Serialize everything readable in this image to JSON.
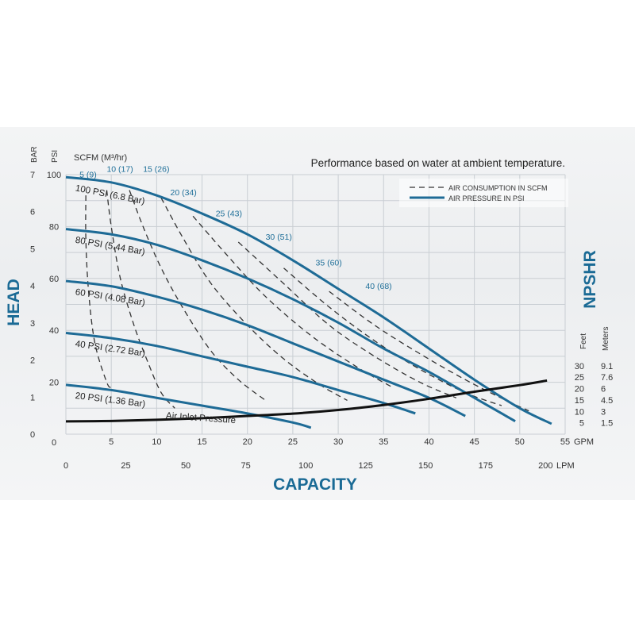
{
  "chart_data": {
    "type": "line",
    "note": "Performance based on water at ambient temperature.",
    "xlabel": "CAPACITY",
    "ylabel": "HEAD",
    "ylabel_right": "NPSHR",
    "gpm_ticks": [
      0,
      5,
      10,
      15,
      20,
      25,
      30,
      35,
      40,
      45,
      50,
      55
    ],
    "gpm_unit": "GPM",
    "lpm_ticks": [
      0,
      25,
      50,
      75,
      100,
      125,
      150,
      175,
      200
    ],
    "lpm_unit": "LPM",
    "bar_unit": "BAR",
    "bar_ticks": [
      0,
      1,
      2,
      3,
      4,
      5,
      6,
      7
    ],
    "psi_unit": "PSI",
    "psi_ticks": [
      20,
      40,
      60,
      80,
      100
    ],
    "scfm_unit": "SCFM (M³/hr)",
    "npshr_feet_unit": "Feet",
    "npshr_meters_unit": "Meters",
    "npshr_feet_ticks": [
      5,
      10,
      15,
      20,
      25,
      30
    ],
    "npshr_meters_ticks": [
      "1.5",
      "3",
      "4.5",
      "6",
      "7.6",
      "9.1"
    ],
    "legend": {
      "dashed": "AIR CONSUMPTION IN SCFM",
      "solid": "AIR PRESSURE IN PSI"
    },
    "xlim": [
      0,
      55
    ],
    "ylim": [
      0,
      100
    ],
    "pressure_curves": [
      {
        "name": "100 PSI (6.8 Bar)",
        "points": [
          [
            0,
            99
          ],
          [
            5,
            97
          ],
          [
            10,
            92
          ],
          [
            15,
            85
          ],
          [
            20,
            77
          ],
          [
            25,
            67
          ],
          [
            30,
            56
          ],
          [
            35,
            45
          ],
          [
            40,
            33
          ],
          [
            45,
            21
          ],
          [
            50,
            10
          ],
          [
            53.5,
            4
          ]
        ]
      },
      {
        "name": "80 PSI (5.44 Bar)",
        "points": [
          [
            0,
            79
          ],
          [
            5,
            77
          ],
          [
            10,
            73
          ],
          [
            15,
            67
          ],
          [
            20,
            60
          ],
          [
            25,
            52
          ],
          [
            30,
            43
          ],
          [
            35,
            33
          ],
          [
            40,
            24
          ],
          [
            45,
            14
          ],
          [
            49.5,
            5
          ]
        ]
      },
      {
        "name": "60 PSI (4.08 Bar)",
        "points": [
          [
            0,
            59
          ],
          [
            5,
            57
          ],
          [
            10,
            53
          ],
          [
            15,
            48
          ],
          [
            20,
            42
          ],
          [
            25,
            35
          ],
          [
            30,
            28
          ],
          [
            35,
            21
          ],
          [
            40,
            14
          ],
          [
            44,
            7
          ]
        ]
      },
      {
        "name": "40 PSI (2.72 Bar)",
        "points": [
          [
            0,
            39
          ],
          [
            5,
            37
          ],
          [
            10,
            34
          ],
          [
            15,
            30
          ],
          [
            20,
            26
          ],
          [
            25,
            22
          ],
          [
            30,
            17
          ],
          [
            35,
            12
          ],
          [
            38.5,
            8
          ]
        ]
      },
      {
        "name": "20 PSI (1.36 Bar)",
        "points": [
          [
            0,
            19
          ],
          [
            5,
            17
          ],
          [
            10,
            14
          ],
          [
            15,
            11
          ],
          [
            20,
            8
          ],
          [
            25,
            4.5
          ],
          [
            27,
            2.5
          ]
        ]
      }
    ],
    "scfm_curves": [
      {
        "name": "5 (9)",
        "points": [
          [
            2.2,
            92
          ],
          [
            2.2,
            75
          ],
          [
            2.5,
            55
          ],
          [
            3.2,
            35
          ],
          [
            4.5,
            20
          ],
          [
            5,
            18
          ]
        ]
      },
      {
        "name": "10 (17)",
        "points": [
          [
            4.5,
            94
          ],
          [
            5,
            80
          ],
          [
            6,
            60
          ],
          [
            7.5,
            42
          ],
          [
            9,
            28
          ],
          [
            10.5,
            16
          ],
          [
            12,
            10
          ]
        ]
      },
      {
        "name": "15 (26)",
        "points": [
          [
            7,
            94
          ],
          [
            8.5,
            80
          ],
          [
            10.5,
            64
          ],
          [
            13,
            48
          ],
          [
            16,
            32
          ],
          [
            19,
            21
          ],
          [
            22,
            13
          ]
        ]
      },
      {
        "name": "20 (34)",
        "points": [
          [
            10.5,
            91
          ],
          [
            13,
            75
          ],
          [
            16,
            58
          ],
          [
            20,
            42
          ],
          [
            24,
            29
          ],
          [
            28,
            19
          ],
          [
            31,
            13
          ]
        ]
      },
      {
        "name": "25 (43)",
        "points": [
          [
            14,
            84
          ],
          [
            18,
            68
          ],
          [
            22,
            53
          ],
          [
            27,
            38
          ],
          [
            32,
            26
          ],
          [
            36,
            18
          ]
        ]
      },
      {
        "name": "30 (51)",
        "points": [
          [
            19,
            74
          ],
          [
            24,
            58
          ],
          [
            29,
            42
          ],
          [
            34,
            30
          ],
          [
            39,
            20
          ],
          [
            43,
            14
          ]
        ]
      },
      {
        "name": "35 (60)",
        "points": [
          [
            24,
            64
          ],
          [
            29,
            49
          ],
          [
            34,
            36
          ],
          [
            39,
            25
          ],
          [
            44,
            16
          ],
          [
            48,
            11
          ]
        ]
      },
      {
        "name": "40 (68)",
        "points": [
          [
            29,
            55
          ],
          [
            34,
            42
          ],
          [
            39,
            31
          ],
          [
            44,
            21
          ],
          [
            48.5,
            13
          ],
          [
            51,
            9
          ]
        ]
      }
    ],
    "scfm_label_points": [
      [
        1.5,
        99
      ],
      [
        4.5,
        101
      ],
      [
        8.5,
        101
      ],
      [
        11.5,
        92
      ],
      [
        16.5,
        84
      ],
      [
        22,
        75
      ],
      [
        27.5,
        65
      ],
      [
        33,
        56
      ]
    ],
    "npshr_label": "Air Inlet Pressure",
    "npshr_curve": [
      [
        0,
        5.6
      ],
      [
        5,
        5.8
      ],
      [
        10,
        6.3
      ],
      [
        15,
        7
      ],
      [
        20,
        8
      ],
      [
        25,
        9
      ],
      [
        30,
        10.6
      ],
      [
        35,
        12.8
      ],
      [
        40,
        15.5
      ],
      [
        45,
        18.6
      ],
      [
        50,
        21.5
      ],
      [
        53,
        23.5
      ]
    ]
  }
}
